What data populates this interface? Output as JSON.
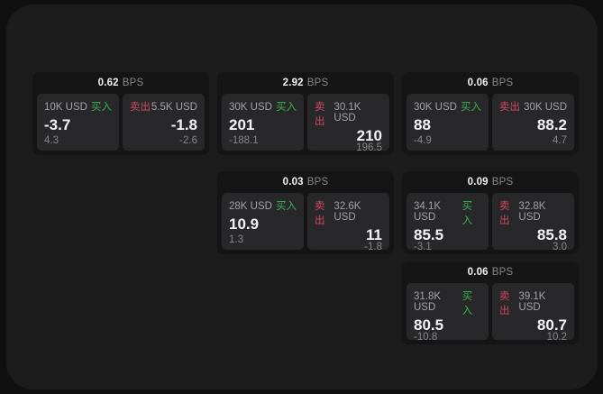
{
  "palette": {
    "outer_bg": "#101011",
    "page_bg": "#1c1c1d",
    "card_bg": "#151516",
    "panel_bg": "#28282a",
    "text_primary": "#f2f3f4",
    "text_secondary": "#a2a3a5",
    "text_muted": "#87878a",
    "buy_color": "#39b254",
    "sell_color": "#cf4a60"
  },
  "labels": {
    "bps_unit": "BPS",
    "buy": "买入",
    "sell": "卖出"
  },
  "cards": [
    {
      "bps": "0.62",
      "buy": {
        "amount": "10K USD",
        "value": "-3.7",
        "pnl": "4.3"
      },
      "sell": {
        "amount": "5.5K USD",
        "value": "-1.8",
        "pnl": "-2.6"
      }
    },
    {
      "bps": "2.92",
      "buy": {
        "amount": "30K USD",
        "value": "201",
        "pnl": "-188.1"
      },
      "sell": {
        "amount": "30.1K USD",
        "value": "210",
        "pnl": "196.5"
      }
    },
    {
      "bps": "0.06",
      "buy": {
        "amount": "30K USD",
        "value": "88",
        "pnl": "-4.9"
      },
      "sell": {
        "amount": "30K USD",
        "value": "88.2",
        "pnl": "4.7"
      }
    },
    {
      "bps": "0.03",
      "buy": {
        "amount": "28K USD",
        "value": "10.9",
        "pnl": "1.3"
      },
      "sell": {
        "amount": "32.6K USD",
        "value": "11",
        "pnl": "-1.8"
      }
    },
    {
      "bps": "0.09",
      "buy": {
        "amount": "34.1K USD",
        "value": "85.5",
        "pnl": "-3.1"
      },
      "sell": {
        "amount": "32.8K USD",
        "value": "85.8",
        "pnl": "3.0"
      }
    },
    {
      "bps": "0.06",
      "buy": {
        "amount": "31.8K USD",
        "value": "80.5",
        "pnl": "-10.8"
      },
      "sell": {
        "amount": "39.1K USD",
        "value": "80.7",
        "pnl": "10.2"
      }
    }
  ]
}
